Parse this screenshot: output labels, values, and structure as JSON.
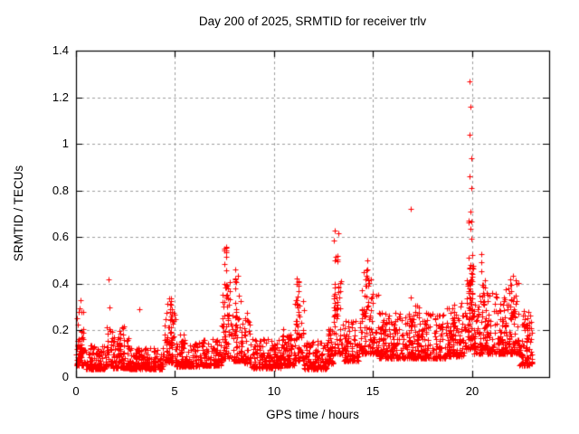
{
  "page": {
    "background": "#ffffff"
  },
  "chart_data": {
    "type": "scatter",
    "title": "Day 200 of 2025, SRMTID for receiver trlv",
    "xlabel": "GPS time / hours",
    "ylabel": "SRMTID / TECUs",
    "xlim": [
      0,
      23.9
    ],
    "ylim": [
      0,
      1.4
    ],
    "x_ticks": {
      "values": [
        0,
        5,
        10,
        15,
        20
      ],
      "labels": [
        "0",
        "5",
        "10",
        "15",
        "20"
      ]
    },
    "y_ticks": {
      "values": [
        0,
        0.2,
        0.4,
        0.6,
        0.8,
        1.0,
        1.2,
        1.4
      ],
      "labels": [
        "0",
        "0.2",
        "0.4",
        "0.6",
        "0.8",
        "1",
        "1.2",
        "1.4"
      ]
    },
    "grid": {
      "on": true,
      "color": "#9e9e9e",
      "dash": [
        3,
        3
      ],
      "at": "major ticks both axes"
    },
    "axis_color": "#000000",
    "legend": "none",
    "marker": {
      "shape": "plus",
      "color": "#ff0000",
      "size": 7,
      "stroke": 1
    },
    "seed": 1337,
    "value_bias_exponent": 2.2,
    "bands_format": "[hour_start, hour_end, value_low, value_high, n_points] - dense noise band, bottom-weighted",
    "bands": [
      [
        0.0,
        0.45,
        0.05,
        0.22,
        60
      ],
      [
        0.45,
        1.55,
        0.035,
        0.135,
        130
      ],
      [
        1.55,
        1.85,
        0.05,
        0.22,
        35
      ],
      [
        1.85,
        2.65,
        0.04,
        0.18,
        95
      ],
      [
        2.65,
        4.45,
        0.035,
        0.125,
        210
      ],
      [
        4.45,
        5.05,
        0.06,
        0.28,
        70
      ],
      [
        5.05,
        6.25,
        0.045,
        0.15,
        140
      ],
      [
        6.25,
        7.35,
        0.05,
        0.165,
        125
      ],
      [
        7.35,
        7.85,
        0.08,
        0.45,
        60
      ],
      [
        7.85,
        8.45,
        0.07,
        0.35,
        65
      ],
      [
        8.45,
        8.85,
        0.06,
        0.28,
        45
      ],
      [
        8.85,
        10.35,
        0.04,
        0.165,
        170
      ],
      [
        10.35,
        11.05,
        0.05,
        0.21,
        80
      ],
      [
        11.05,
        11.5,
        0.07,
        0.35,
        55
      ],
      [
        11.5,
        12.65,
        0.035,
        0.155,
        125
      ],
      [
        12.65,
        13.0,
        0.06,
        0.21,
        40
      ],
      [
        13.0,
        13.45,
        0.1,
        0.42,
        55
      ],
      [
        13.45,
        14.3,
        0.07,
        0.24,
        95
      ],
      [
        14.3,
        15.3,
        0.1,
        0.42,
        115
      ],
      [
        15.3,
        16.65,
        0.08,
        0.28,
        155
      ],
      [
        16.65,
        17.45,
        0.08,
        0.31,
        95
      ],
      [
        17.45,
        18.65,
        0.08,
        0.28,
        135
      ],
      [
        18.65,
        19.65,
        0.09,
        0.32,
        115
      ],
      [
        19.65,
        20.1,
        0.12,
        0.5,
        75
      ],
      [
        20.1,
        20.5,
        0.1,
        0.37,
        50
      ],
      [
        20.5,
        20.75,
        0.12,
        0.42,
        35
      ],
      [
        20.75,
        21.65,
        0.1,
        0.37,
        110
      ],
      [
        21.65,
        22.4,
        0.1,
        0.42,
        95
      ],
      [
        22.4,
        23.05,
        0.05,
        0.28,
        80
      ]
    ],
    "columns_format": "[hour_start, hour_end, value_low, value_high, n_points] - narrow vertical spike clusters, uniform",
    "columns": [
      [
        0.05,
        0.35,
        0.12,
        0.32,
        12
      ],
      [
        2.1,
        2.45,
        0.1,
        0.22,
        14
      ],
      [
        4.6,
        4.85,
        0.15,
        0.375,
        16
      ],
      [
        5.25,
        5.5,
        0.08,
        0.185,
        10
      ],
      [
        7.48,
        7.68,
        0.18,
        0.58,
        22
      ],
      [
        8.02,
        8.22,
        0.18,
        0.47,
        14
      ],
      [
        10.45,
        10.9,
        0.08,
        0.23,
        14
      ],
      [
        11.12,
        11.32,
        0.18,
        0.455,
        12
      ],
      [
        12.7,
        12.95,
        0.08,
        0.22,
        10
      ],
      [
        13.0,
        13.3,
        0.28,
        0.635,
        16
      ],
      [
        14.45,
        14.75,
        0.25,
        0.52,
        14
      ],
      [
        15.45,
        15.7,
        0.1,
        0.3,
        10
      ],
      [
        16.8,
        17.0,
        0.12,
        0.35,
        10
      ],
      [
        18.8,
        19.1,
        0.12,
        0.33,
        12
      ],
      [
        19.82,
        20.0,
        0.22,
        0.67,
        26
      ],
      [
        20.48,
        20.65,
        0.28,
        0.57,
        12
      ],
      [
        21.9,
        22.15,
        0.22,
        0.45,
        12
      ],
      [
        22.6,
        22.85,
        0.12,
        0.3,
        10
      ]
    ],
    "outliers_format": "[hour, value] - individually visible high points",
    "outliers": [
      [
        19.9,
        1.27
      ],
      [
        19.93,
        1.16
      ],
      [
        19.88,
        1.04
      ],
      [
        19.95,
        0.94
      ],
      [
        19.9,
        0.86
      ],
      [
        19.96,
        0.81
      ],
      [
        19.91,
        0.71
      ],
      [
        16.9,
        0.72
      ],
      [
        1.64,
        0.42
      ],
      [
        1.67,
        0.3
      ],
      [
        3.22,
        0.29
      ],
      [
        0.25,
        0.33
      ]
    ]
  }
}
